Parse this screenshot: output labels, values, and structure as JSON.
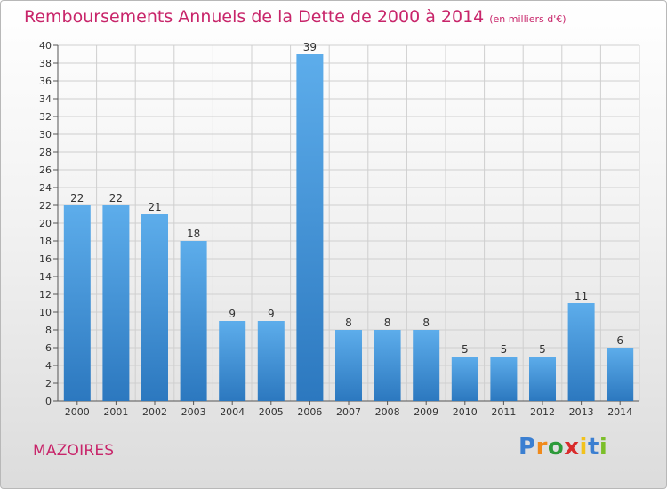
{
  "header": {
    "title": "Remboursements Annuels de la Dette de 2000 à 2014",
    "unit": "(en milliers d'€)"
  },
  "footer": {
    "commune": "MAZOIRES",
    "logo": {
      "letters": [
        "P",
        "r",
        "o",
        "x",
        "i",
        "t",
        "i"
      ],
      "colors": [
        "#3b7fd1",
        "#f08a1c",
        "#2d9a3a",
        "#d92b2b",
        "#f2c21b",
        "#3b7fd1",
        "#7cbf2a"
      ]
    }
  },
  "chart_data": {
    "type": "bar",
    "title": "Remboursements Annuels de la Dette de 2000 à 2014",
    "categories": [
      "2000",
      "2001",
      "2002",
      "2003",
      "2004",
      "2005",
      "2006",
      "2007",
      "2008",
      "2009",
      "2010",
      "2011",
      "2012",
      "2013",
      "2014"
    ],
    "values": [
      22,
      22,
      21,
      18,
      9,
      9,
      39,
      8,
      8,
      8,
      5,
      5,
      5,
      11,
      6
    ],
    "value_labels": [
      "22",
      "22",
      "21",
      "18",
      "9",
      "9",
      "39",
      "8",
      "8",
      "8",
      "5",
      "5",
      "5",
      "11",
      "6"
    ],
    "ylim": [
      0,
      40
    ],
    "yticks": [
      0,
      2,
      4,
      6,
      8,
      10,
      12,
      14,
      16,
      18,
      20,
      22,
      24,
      26,
      28,
      30,
      32,
      34,
      36,
      38,
      40
    ],
    "grid": true,
    "bar_color_top": "#5dadeb",
    "bar_color_bottom": "#2c78bf"
  }
}
